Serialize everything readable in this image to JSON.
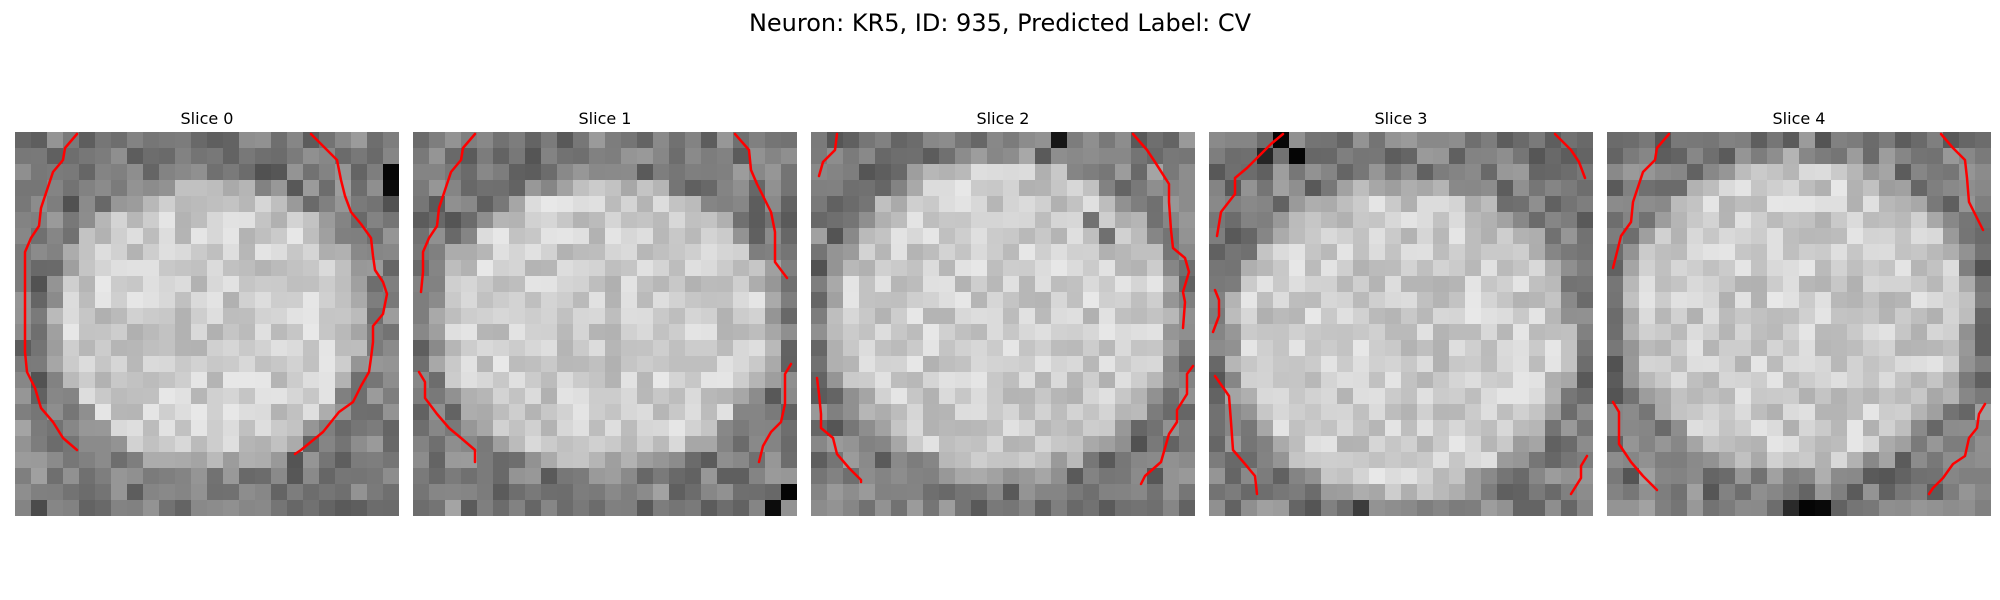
{
  "figure": {
    "title": "Neuron: KR5, ID: 935, Predicted Label: CV"
  },
  "panels": [
    {
      "title": "Slice 0"
    },
    {
      "title": "Slice 1"
    },
    {
      "title": "Slice 2"
    },
    {
      "title": "Slice 3"
    },
    {
      "title": "Slice 4"
    }
  ],
  "colors": {
    "contour": "#ff0000",
    "colormap": "grayscale"
  }
}
